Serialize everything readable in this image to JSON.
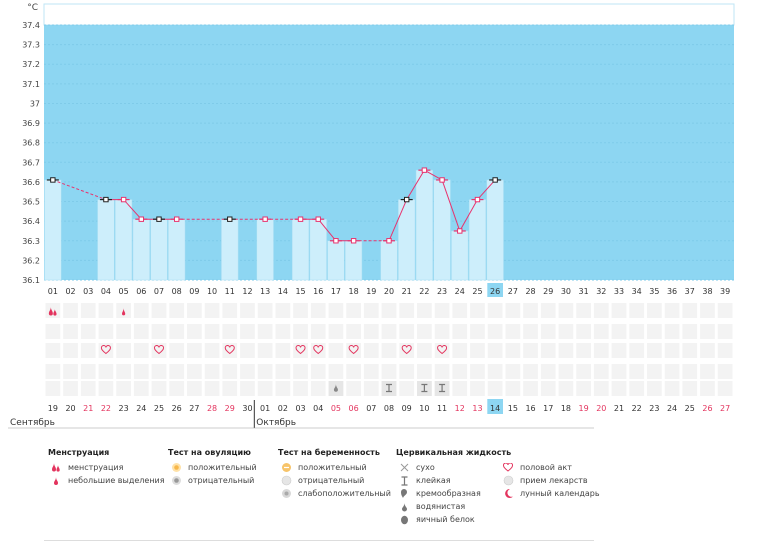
{
  "colors": {
    "chart_bg": "#8dd6f2",
    "bar_fill": "#cdeefb",
    "bar_stroke": "#a9def3",
    "line": "#e8336e",
    "today_bg": "#8dd6f2",
    "red_day": "#e3345e",
    "grid_cell": "#f3f3f3"
  },
  "chart_data": {
    "type": "bar",
    "unit_label": "°C",
    "ylim": [
      36.1,
      37.4
    ],
    "y_ticks": [
      "37.4",
      "37.3",
      "37.2",
      "37.1",
      "37",
      "36.9",
      "36.8",
      "36.7",
      "36.6",
      "36.5",
      "36.4",
      "36.3",
      "36.2",
      "36.1"
    ],
    "cycle_days": [
      "01",
      "02",
      "03",
      "04",
      "05",
      "06",
      "07",
      "08",
      "09",
      "10",
      "11",
      "12",
      "13",
      "14",
      "15",
      "16",
      "17",
      "18",
      "19",
      "20",
      "21",
      "22",
      "23",
      "24",
      "25",
      "26",
      "27",
      "28",
      "29",
      "30",
      "31",
      "32",
      "33",
      "34",
      "35",
      "36",
      "37",
      "38",
      "39"
    ],
    "current_day_index": 25,
    "temperatures": [
      36.61,
      null,
      null,
      36.51,
      36.51,
      36.41,
      36.41,
      36.41,
      null,
      null,
      36.41,
      null,
      36.41,
      null,
      36.41,
      36.41,
      36.3,
      36.3,
      null,
      36.3,
      36.51,
      36.66,
      36.61,
      36.35,
      36.51,
      36.61,
      null,
      null,
      null,
      null,
      null,
      null,
      null,
      null,
      null,
      null,
      null,
      null,
      null
    ],
    "marker_styles": [
      "black",
      "none",
      "none",
      "black",
      "pink",
      "pink",
      "black",
      "pink",
      "none",
      "none",
      "black",
      "none",
      "pink",
      "none",
      "pink",
      "pink",
      "pink",
      "pink",
      "none",
      "pink",
      "black",
      "pink",
      "pink",
      "pink",
      "pink",
      "black",
      "none",
      "none",
      "none",
      "none",
      "none",
      "none",
      "none",
      "none",
      "none",
      "none",
      "none",
      "none",
      "none"
    ]
  },
  "symbols": {
    "menstruation_row": [
      {
        "day": 0,
        "type": "heavy"
      },
      {
        "day": 4,
        "type": "light"
      }
    ],
    "intercourse_row": [
      3,
      6,
      10,
      14,
      15,
      17,
      20,
      22
    ],
    "cervical_row": [
      {
        "day": 16,
        "type": "watery"
      },
      {
        "day": 19,
        "type": "sticky"
      },
      {
        "day": 21,
        "type": "sticky"
      },
      {
        "day": 22,
        "type": "sticky"
      }
    ]
  },
  "calendar": {
    "dates": [
      "19",
      "20",
      "21",
      "22",
      "23",
      "24",
      "25",
      "26",
      "27",
      "28",
      "29",
      "30",
      "01",
      "02",
      "03",
      "04",
      "05",
      "06",
      "07",
      "08",
      "09",
      "10",
      "11",
      "12",
      "13",
      "14",
      "15",
      "16",
      "17",
      "18",
      "19",
      "20",
      "21",
      "22",
      "23",
      "24",
      "25",
      "26",
      "27"
    ],
    "red_indices": [
      2,
      3,
      9,
      10,
      16,
      17,
      23,
      24,
      30,
      31,
      37,
      38
    ],
    "month_start_index": 12,
    "month_left": "Сентябрь",
    "month_right": "Октябрь"
  },
  "legend": {
    "menstruation": {
      "title": "Менструация",
      "items": [
        "менструация",
        "небольшие выделения"
      ]
    },
    "ovulation": {
      "title": "Тест на овуляцию",
      "items": [
        "положительный",
        "отрицательный"
      ]
    },
    "pregnancy": {
      "title": "Тест на беременность",
      "items": [
        "положительный",
        "отрицательный",
        "слабоположительный"
      ]
    },
    "cervical": {
      "title": "Цервикальная жидкость",
      "items": [
        "сухо",
        "клейкая",
        "кремообразная",
        "водянистая",
        "яичный белок"
      ]
    },
    "other": {
      "items": [
        "половой акт",
        "прием лекарств",
        "лунный календарь"
      ]
    }
  }
}
